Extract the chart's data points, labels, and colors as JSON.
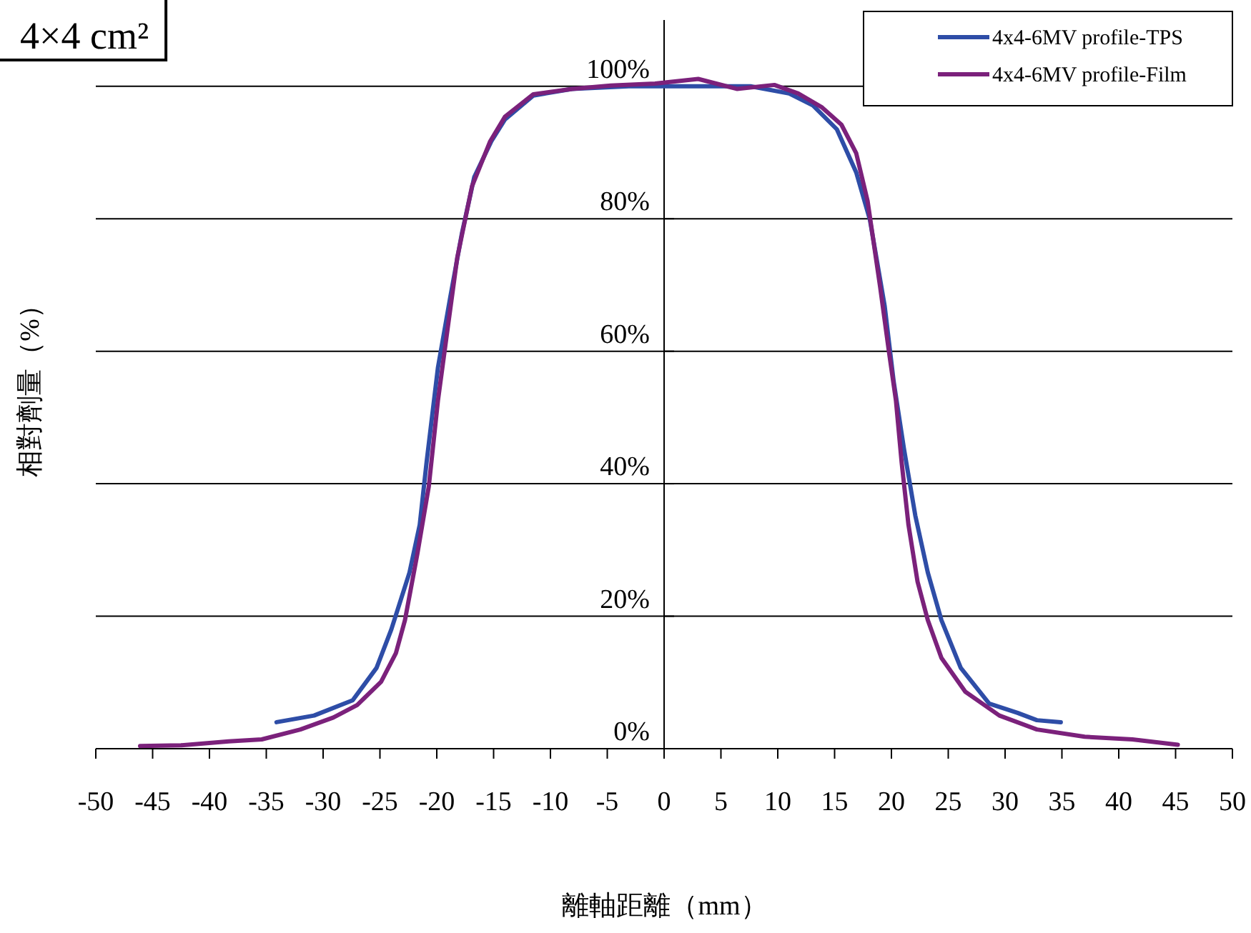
{
  "chart_data": {
    "type": "line",
    "title": "4×4 cm²",
    "xlabel": "離軸距離（mm）",
    "ylabel": "相對劑量（%）",
    "xlim": [
      -50,
      50
    ],
    "xticks": [
      -50,
      -45,
      -40,
      -35,
      -30,
      -25,
      -20,
      -15,
      -10,
      -5,
      0,
      5,
      10,
      15,
      20,
      25,
      30,
      35,
      40,
      45,
      50
    ],
    "ylim": [
      0,
      110
    ],
    "yticks": [
      {
        "value": 0,
        "label": "0%"
      },
      {
        "value": 20,
        "label": "20%"
      },
      {
        "value": 40,
        "label": "40%"
      },
      {
        "value": 60,
        "label": "60%"
      },
      {
        "value": 80,
        "label": "80%"
      },
      {
        "value": 100,
        "label": "100%"
      }
    ],
    "grid": "y",
    "legend": "top right",
    "marker": "none",
    "line_style": "solid",
    "series": [
      {
        "name": "4x4-6MV profile-TPS",
        "color": "#2e4da7",
        "x": [
          -34.1,
          -30.8,
          -27.4,
          -25.3,
          -24.0,
          -22.4,
          -21.5,
          -20.9,
          -19.9,
          -18.8,
          -17.8,
          -16.7,
          -15.2,
          -14.0,
          -11.5,
          -8.1,
          -3.1,
          0,
          7.6,
          11.0,
          13.1,
          15.2,
          16.9,
          18.1,
          19.4,
          20.2,
          21.1,
          22.1,
          23.2,
          24.4,
          26.1,
          28.6,
          31.1,
          32.8,
          34.9
        ],
        "values": [
          4.0,
          5.0,
          7.3,
          12.2,
          18.0,
          26.6,
          33.8,
          43.2,
          57.5,
          68.3,
          77.7,
          86.3,
          91.7,
          95.0,
          98.6,
          99.6,
          100,
          100,
          100,
          98.9,
          97.1,
          93.5,
          87.0,
          79.9,
          66.9,
          55.4,
          45.3,
          35.2,
          26.6,
          19.4,
          12.2,
          6.8,
          5.4,
          4.3,
          4.0
        ]
      },
      {
        "name": "4x4-6MV profile-Film",
        "color": "#7b217b",
        "x": [
          -46.1,
          -42.5,
          -38.3,
          -35.4,
          -32.0,
          -29.1,
          -27.0,
          -24.9,
          -23.6,
          -22.8,
          -21.7,
          -20.7,
          -19.9,
          -19.0,
          -18.2,
          -16.9,
          -15.3,
          -14.0,
          -11.5,
          -8.1,
          -4.7,
          -0.8,
          3.0,
          6.4,
          9.7,
          11.8,
          13.9,
          15.6,
          16.9,
          17.9,
          19.0,
          19.8,
          20.4,
          20.9,
          21.5,
          22.3,
          23.2,
          24.4,
          26.5,
          29.5,
          32.8,
          37.0,
          41.2,
          45.2
        ],
        "values": [
          0.4,
          0.5,
          1.1,
          1.4,
          2.9,
          4.7,
          6.6,
          10.1,
          14.4,
          19.4,
          29.5,
          39.6,
          52.5,
          64.0,
          74.1,
          84.9,
          91.7,
          95.4,
          98.8,
          99.6,
          100.1,
          100.4,
          101.1,
          99.6,
          100.2,
          98.9,
          96.8,
          94.2,
          89.9,
          82.7,
          69.8,
          59.7,
          52.5,
          43.2,
          33.8,
          25.2,
          19.4,
          13.7,
          8.6,
          5.0,
          2.9,
          1.8,
          1.4,
          0.6
        ]
      }
    ]
  }
}
